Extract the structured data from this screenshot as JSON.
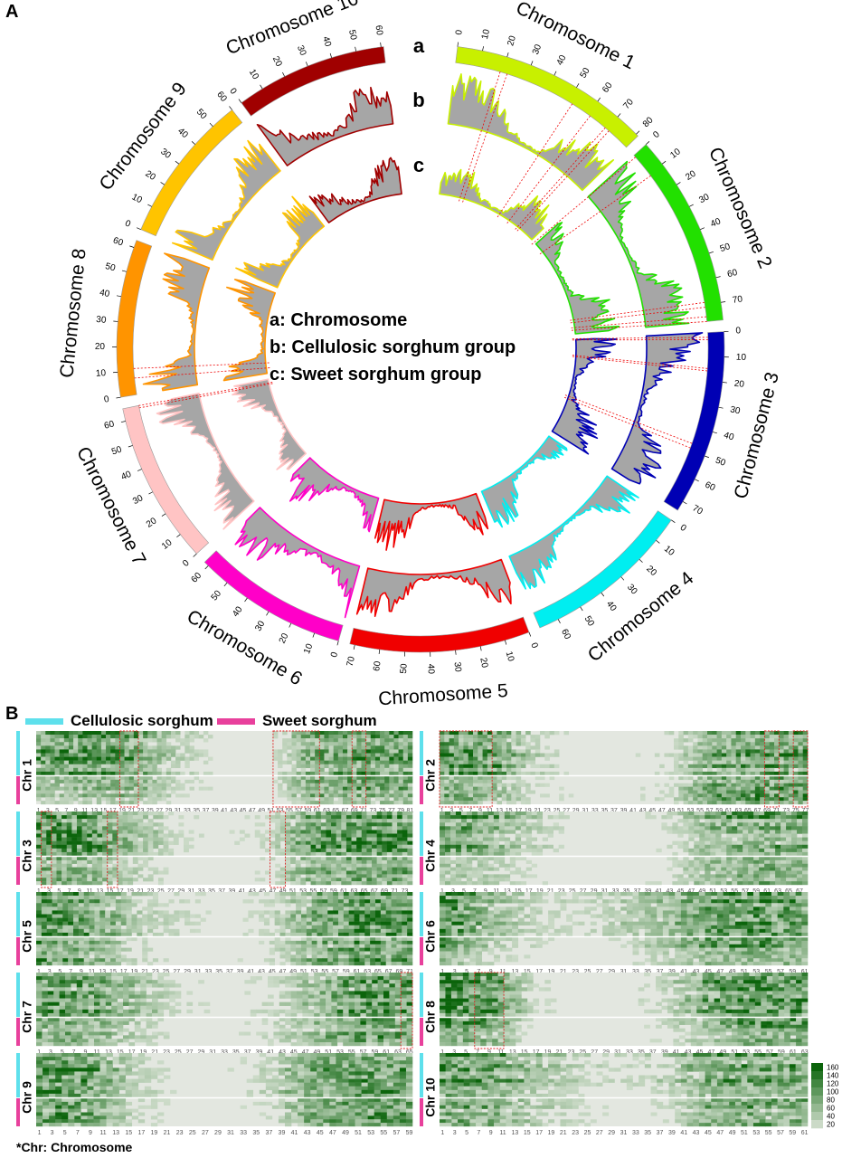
{
  "figure": {
    "panel_a_label": "A",
    "panel_b_label": "B",
    "footnote": "*Chr: Chromosome"
  },
  "chart_data": [
    {
      "type": "circos",
      "track_labels": {
        "a": "a",
        "b": "b",
        "c": "c"
      },
      "legend": [
        "a: Chromosome",
        "b: Cellulosic sorghum group",
        "c: Sweet sorghum group"
      ],
      "tick_step_mb": 10,
      "chromosomes": [
        {
          "name": "Chromosome 1",
          "length": 81,
          "color": "#c8f000"
        },
        {
          "name": "Chromosome 2",
          "length": 77,
          "color": "#22e000"
        },
        {
          "name": "Chromosome 3",
          "length": 74,
          "color": "#0000b4"
        },
        {
          "name": "Chromosome 4",
          "length": 68,
          "color": "#00eef0"
        },
        {
          "name": "Chromosome 5",
          "length": 72,
          "color": "#f00000"
        },
        {
          "name": "Chromosome 6",
          "length": 62,
          "color": "#ff00c8"
        },
        {
          "name": "Chromosome 7",
          "length": 65,
          "color": "#ffc4c4"
        },
        {
          "name": "Chromosome 8",
          "length": 63,
          "color": "#ff9400"
        },
        {
          "name": "Chromosome 9",
          "length": 60,
          "color": "#ffc400"
        },
        {
          "name": "Chromosome 10",
          "length": 61,
          "color": "#a00000"
        }
      ]
    },
    {
      "type": "heatmap",
      "legend": [
        {
          "label": "Cellulosic sorghum",
          "color": "#5ee0ec"
        },
        {
          "label": "Sweet sorghum",
          "color": "#e8409c"
        }
      ],
      "colorbar": {
        "ticks": [
          20,
          40,
          60,
          80,
          100,
          120,
          140,
          160
        ],
        "low_color": "#e6ebe2",
        "high_color": "#0b640b"
      },
      "panels": [
        {
          "label": "Chr 1",
          "bins": 81,
          "cellulosic": [
            0.6,
            0.7,
            0.55,
            0.2,
            0.05,
            0.05,
            0.5,
            0.6,
            0.55
          ],
          "sweet": [
            0.25,
            0.3,
            0.35,
            0.1,
            0.05,
            0.05,
            0.4,
            0.45,
            0.4
          ],
          "highlights": [
            [
              19,
              22
            ],
            [
              52,
              61
            ],
            [
              69,
              71
            ]
          ]
        },
        {
          "label": "Chr 2",
          "bins": 77,
          "cellulosic": [
            0.75,
            0.6,
            0.2,
            0.05,
            0.05,
            0.1,
            0.5,
            0.55,
            0.6
          ],
          "sweet": [
            0.4,
            0.3,
            0.1,
            0.05,
            0.05,
            0.1,
            0.45,
            0.5,
            0.5
          ],
          "highlights": [
            [
              1,
              11
            ],
            [
              69,
              71
            ],
            [
              75,
              77
            ]
          ]
        },
        {
          "label": "Chr 3",
          "bins": 74,
          "cellulosic": [
            0.7,
            0.6,
            0.3,
            0.1,
            0.05,
            0.1,
            0.55,
            0.6,
            0.6
          ],
          "sweet": [
            0.5,
            0.4,
            0.2,
            0.05,
            0.05,
            0.1,
            0.45,
            0.5,
            0.5
          ],
          "highlights": [
            [
              2,
              3
            ],
            [
              15,
              16
            ],
            [
              47,
              49
            ]
          ]
        },
        {
          "label": "Chr 4",
          "bins": 68,
          "cellulosic": [
            0.55,
            0.5,
            0.2,
            0.05,
            0.05,
            0.1,
            0.45,
            0.55,
            0.5
          ],
          "sweet": [
            0.3,
            0.25,
            0.1,
            0.05,
            0.05,
            0.1,
            0.4,
            0.5,
            0.45
          ],
          "highlights": []
        },
        {
          "label": "Chr 5",
          "bins": 71,
          "cellulosic": [
            0.6,
            0.5,
            0.2,
            0.1,
            0.05,
            0.1,
            0.4,
            0.65,
            0.6
          ],
          "sweet": [
            0.55,
            0.4,
            0.15,
            0.05,
            0.05,
            0.1,
            0.4,
            0.6,
            0.55
          ],
          "highlights": []
        },
        {
          "label": "Chr 6",
          "bins": 61,
          "cellulosic": [
            0.7,
            0.3,
            0.15,
            0.1,
            0.2,
            0.3,
            0.55,
            0.6,
            0.5
          ],
          "sweet": [
            0.6,
            0.2,
            0.1,
            0.05,
            0.1,
            0.25,
            0.5,
            0.55,
            0.45
          ],
          "highlights": []
        },
        {
          "label": "Chr 7",
          "bins": 65,
          "cellulosic": [
            0.6,
            0.5,
            0.3,
            0.1,
            0.05,
            0.1,
            0.3,
            0.6,
            0.55
          ],
          "sweet": [
            0.4,
            0.35,
            0.2,
            0.05,
            0.05,
            0.1,
            0.3,
            0.5,
            0.45
          ],
          "highlights": [
            [
              64,
              65
            ]
          ]
        },
        {
          "label": "Chr 8",
          "bins": 63,
          "cellulosic": [
            0.8,
            0.6,
            0.1,
            0.05,
            0.05,
            0.15,
            0.5,
            0.6,
            0.6
          ],
          "sweet": [
            0.5,
            0.45,
            0.05,
            0.05,
            0.05,
            0.1,
            0.3,
            0.55,
            0.5
          ],
          "highlights": [
            [
              7,
              11
            ]
          ]
        },
        {
          "label": "Chr 9",
          "bins": 59,
          "cellulosic": [
            0.6,
            0.55,
            0.2,
            0.05,
            0.05,
            0.15,
            0.5,
            0.55,
            0.55
          ],
          "sweet": [
            0.55,
            0.45,
            0.15,
            0.05,
            0.05,
            0.1,
            0.45,
            0.5,
            0.5
          ],
          "highlights": []
        },
        {
          "label": "Chr 10",
          "bins": 61,
          "cellulosic": [
            0.65,
            0.55,
            0.3,
            0.15,
            0.1,
            0.2,
            0.5,
            0.5,
            0.5
          ],
          "sweet": [
            0.45,
            0.4,
            0.2,
            0.1,
            0.05,
            0.1,
            0.4,
            0.45,
            0.45
          ],
          "highlights": []
        }
      ]
    }
  ]
}
